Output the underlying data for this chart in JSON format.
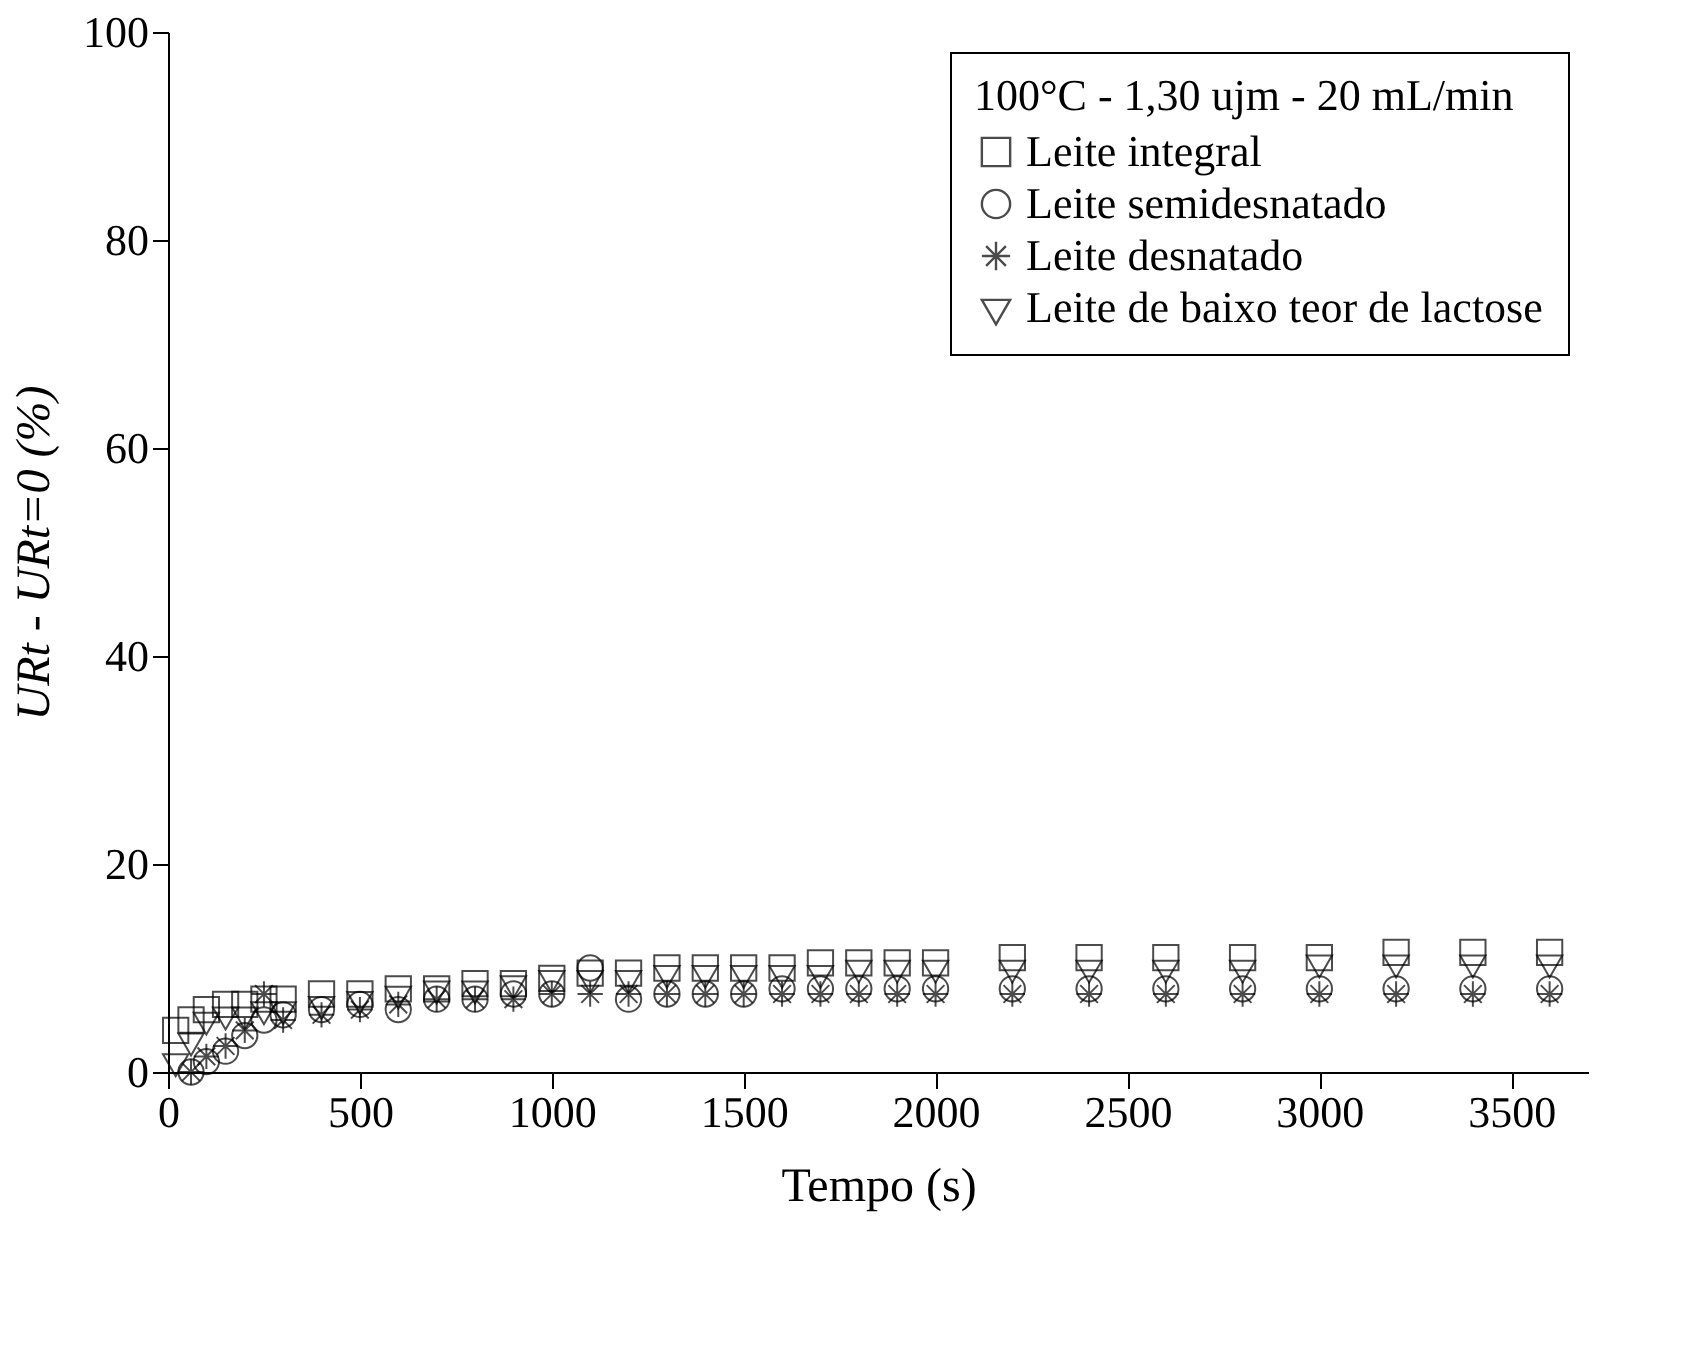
{
  "chart_data": {
    "type": "scatter",
    "xlabel": "Tempo (s)",
    "ylabel": "URt - URt=0 (%)",
    "legend_title": "100°C - 1,30 ujm - 20 mL/min",
    "x": [
      20,
      60,
      100,
      150,
      200,
      250,
      300,
      400,
      500,
      600,
      700,
      800,
      900,
      1000,
      1100,
      1200,
      1300,
      1400,
      1500,
      1600,
      1700,
      1800,
      1900,
      2000,
      2200,
      2400,
      2600,
      2800,
      3000,
      3200,
      3400,
      3600
    ],
    "series": [
      {
        "name": "Leite integral",
        "color": "#000000",
        "marker": "square",
        "values": [
          4,
          5,
          6,
          6.5,
          6.5,
          7,
          7,
          7.5,
          7.5,
          8,
          8,
          8.5,
          8.5,
          9,
          9.5,
          9.5,
          10,
          10,
          10,
          10,
          10.5,
          10.5,
          10.5,
          10.5,
          11,
          11,
          11,
          11,
          11,
          11.5,
          11.5,
          11.5
        ]
      },
      {
        "name": "Leite semidesnatado",
        "color": "#000000",
        "marker": "circle",
        "values": [
          null,
          0,
          1,
          2,
          3.5,
          5,
          5.5,
          6,
          6.5,
          6,
          7,
          7,
          7.5,
          7.5,
          10,
          7,
          7.5,
          7.5,
          7.5,
          8,
          8,
          8,
          8,
          8,
          8,
          8,
          8,
          8,
          8,
          8,
          8,
          8
        ]
      },
      {
        "name": "Leite desnatado",
        "color": "#000000",
        "marker": "cross",
        "values": [
          null,
          0,
          1.5,
          2.5,
          4,
          7.5,
          5,
          5.5,
          6,
          6.5,
          7,
          7,
          7,
          7.5,
          7.5,
          7.5,
          7.5,
          7.5,
          7.5,
          7.5,
          7.5,
          7.5,
          7.5,
          7.5,
          7.5,
          7.5,
          7.5,
          7.5,
          7.5,
          7.5,
          7.5,
          7.5
        ]
      },
      {
        "name": "Leite de baixo teor de lactose",
        "color": "#000000",
        "marker": "triangle",
        "values": [
          1,
          3,
          5,
          5.5,
          5.5,
          6,
          6,
          6.5,
          7,
          7.5,
          8,
          8,
          8.5,
          9,
          9,
          9,
          9.5,
          9.5,
          9.5,
          9.5,
          9.5,
          10,
          10,
          10,
          10,
          10,
          10,
          10,
          10.5,
          10.5,
          10.5,
          10.5
        ]
      }
    ],
    "xlim": [
      0,
      3700
    ],
    "xticks": [
      0,
      500,
      1000,
      1500,
      2000,
      2500,
      3000,
      3500
    ],
    "ylim": [
      0,
      100
    ],
    "yticks": [
      0,
      20,
      40,
      60,
      80,
      100
    ],
    "grid": false,
    "legend": "top right"
  }
}
